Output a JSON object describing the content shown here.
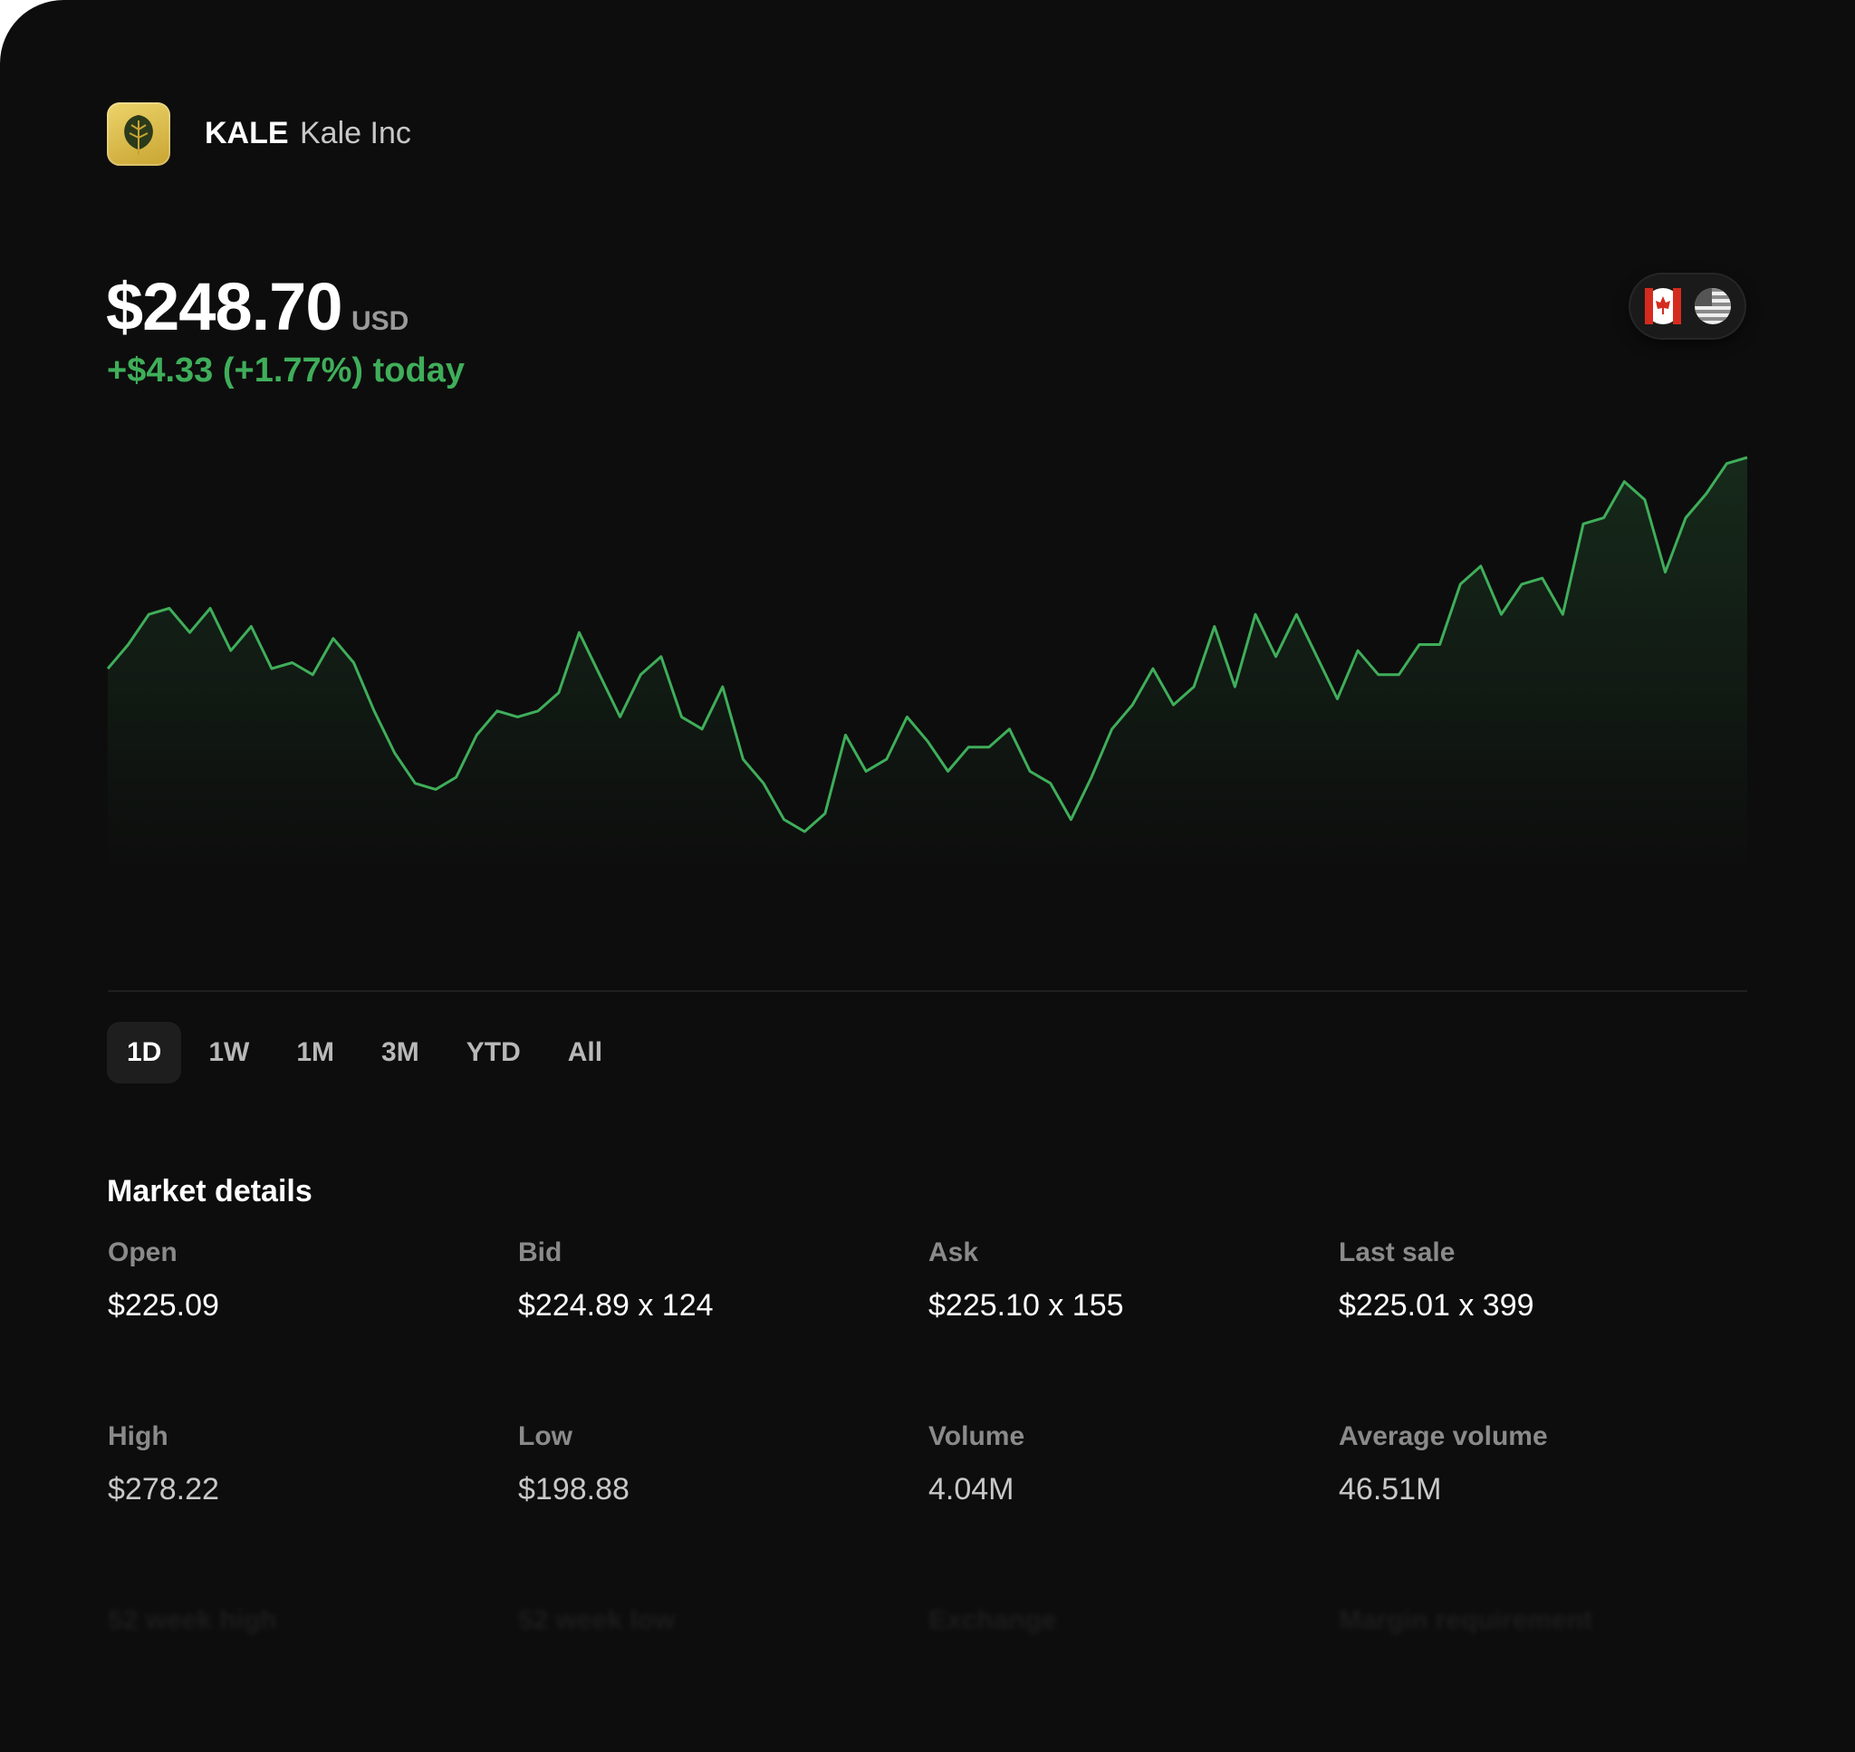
{
  "header": {
    "ticker": "KALE",
    "name": "Kale Inc"
  },
  "quote": {
    "price": "$248.70",
    "currency": "USD",
    "change": "+$4.33 (+1.77%) today"
  },
  "chart": {
    "type": "line",
    "color": "#3fae5a",
    "values": [
      235,
      255,
      280,
      285,
      265,
      285,
      250,
      270,
      235,
      240,
      230,
      260,
      240,
      200,
      165,
      140,
      135,
      145,
      180,
      200,
      195,
      200,
      215,
      265,
      230,
      195,
      230,
      245,
      195,
      185,
      220,
      160,
      140,
      110,
      100,
      115,
      180,
      150,
      160,
      195,
      175,
      150,
      170,
      170,
      185,
      150,
      140,
      110,
      145,
      185,
      205,
      235,
      205,
      220,
      270,
      220,
      280,
      245,
      280,
      245,
      210,
      250,
      230,
      230,
      255,
      255,
      305,
      320,
      280,
      305,
      310,
      280,
      355,
      360,
      390,
      375,
      315,
      360,
      380,
      405,
      410
    ]
  },
  "ranges": [
    "1D",
    "1W",
    "1M",
    "3M",
    "YTD",
    "All"
  ],
  "selected_range": 0,
  "market_details": {
    "title": "Market details",
    "items": [
      {
        "label": "Open",
        "value": "$225.09"
      },
      {
        "label": "Bid",
        "value": "$224.89 x 124"
      },
      {
        "label": "Ask",
        "value": "$225.10 x 155"
      },
      {
        "label": "Last sale",
        "value": "$225.01 x 399"
      },
      {
        "label": "High",
        "value": "$278.22"
      },
      {
        "label": "Low",
        "value": "$198.88"
      },
      {
        "label": "Volume",
        "value": "4.04M"
      },
      {
        "label": "Average volume",
        "value": "46.51M"
      },
      {
        "label": "52 week high"
      },
      {
        "label": "52 week low"
      },
      {
        "label": "Exchange"
      },
      {
        "label": "Margin requirement"
      }
    ]
  }
}
